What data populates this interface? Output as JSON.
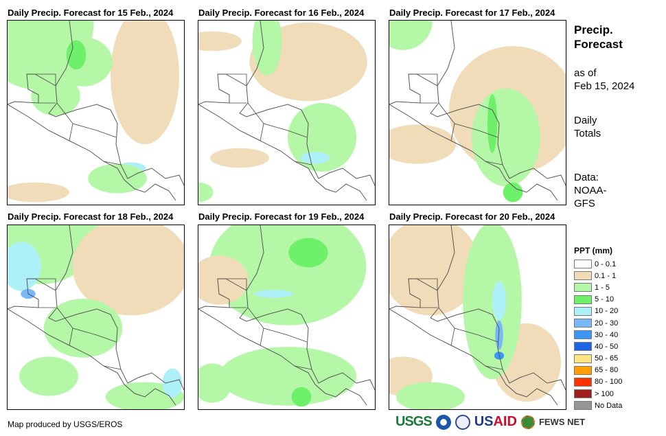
{
  "panels": [
    {
      "title": "Daily Precip. Forecast for 15 Feb., 2024"
    },
    {
      "title": "Daily Precip. Forecast for 16 Feb., 2024"
    },
    {
      "title": "Daily Precip. Forecast for 17 Feb., 2024"
    },
    {
      "title": "Daily Precip. Forecast for 18 Feb., 2024"
    },
    {
      "title": "Daily Precip. Forecast for 19 Feb., 2024"
    },
    {
      "title": "Daily Precip. Forecast for 20 Feb., 2024"
    }
  ],
  "side": {
    "title_line1": "Precip.",
    "title_line2": "Forecast",
    "asof_line1": "as of",
    "asof_line2": "Feb 15, 2024",
    "daily_line1": "Daily",
    "daily_line2": "Totals",
    "data_line1": "Data:",
    "data_line2": "NOAA-",
    "data_line3": "GFS"
  },
  "legend": {
    "title": "PPT (mm)",
    "items": [
      {
        "label": "0 - 0.1",
        "color": "#ffffff"
      },
      {
        "label": "0.1 - 1",
        "color": "#f0dcb8"
      },
      {
        "label": "1 - 5",
        "color": "#b4f7a6"
      },
      {
        "label": "5 - 10",
        "color": "#6ff06a"
      },
      {
        "label": "10 - 20",
        "color": "#aef0f8"
      },
      {
        "label": "20 - 30",
        "color": "#78b8f8"
      },
      {
        "label": "30 - 40",
        "color": "#3c96f5"
      },
      {
        "label": "40 - 50",
        "color": "#1e64e6"
      },
      {
        "label": "50 - 65",
        "color": "#ffe682"
      },
      {
        "label": "65 - 80",
        "color": "#ffa000"
      },
      {
        "label": "80 - 100",
        "color": "#ff3200"
      },
      {
        "label": "> 100",
        "color": "#a01e1e"
      },
      {
        "label": "No Data",
        "color": "#969696"
      }
    ]
  },
  "credit": "Map produced by USGS/EROS",
  "logos": {
    "usgs": "USGS",
    "usaid_a": "US",
    "usaid_b": "AID",
    "fews": "FEWS NET"
  }
}
